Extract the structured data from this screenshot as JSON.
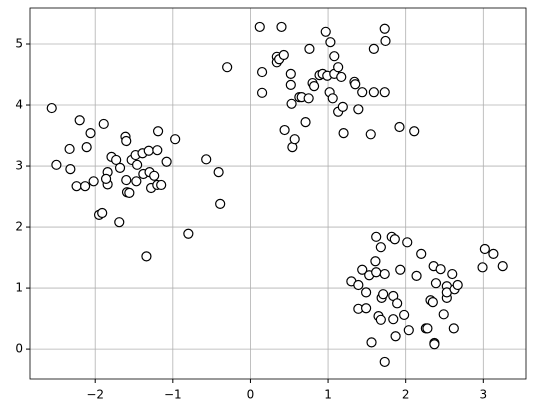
{
  "chart_data": {
    "type": "scatter",
    "x": [
      -2.56,
      -2.5,
      -2.2,
      -2.33,
      -2.32,
      -2.24,
      -2.13,
      -2.11,
      -2.06,
      -2.02,
      -1.89,
      -1.84,
      -1.84,
      -1.86,
      -1.95,
      -1.91,
      -1.79,
      -1.73,
      -1.69,
      -1.68,
      -1.61,
      -1.6,
      -1.6,
      -1.59,
      -1.56,
      -1.53,
      -1.48,
      -1.47,
      -1.46,
      -1.39,
      -1.38,
      -1.31,
      -1.3,
      -1.28,
      -1.24,
      -1.2,
      -1.2,
      -1.19,
      -1.15,
      -1.08,
      -0.97,
      -1.34,
      -0.8,
      -0.57,
      -0.41,
      -0.39,
      -0.3,
      0.12,
      0.4,
      0.15,
      0.15,
      0.34,
      0.34,
      0.37,
      0.43,
      0.44,
      0.52,
      0.52,
      0.53,
      0.54,
      0.57,
      0.63,
      0.66,
      0.71,
      0.75,
      0.76,
      0.8,
      0.82,
      0.89,
      0.93,
      0.97,
      0.99,
      1.02,
      1.03,
      1.06,
      1.08,
      1.08,
      1.13,
      1.13,
      1.17,
      1.19,
      1.2,
      1.34,
      1.35,
      1.39,
      1.44,
      1.55,
      1.59,
      1.59,
      1.73,
      1.74,
      1.73,
      1.92,
      2.11,
      1.3,
      1.39,
      1.39,
      1.44,
      1.49,
      1.49,
      1.53,
      1.56,
      1.61,
      1.62,
      1.62,
      1.65,
      1.68,
      1.68,
      1.69,
      1.71,
      1.73,
      1.73,
      1.82,
      1.84,
      1.86,
      1.84,
      1.89,
      1.87,
      1.93,
      1.98,
      2.02,
      2.04,
      2.14,
      2.2,
      2.26,
      2.28,
      2.32,
      2.35,
      2.36,
      2.37,
      2.37,
      2.39,
      2.45,
      2.49,
      2.53,
      2.53,
      2.53,
      2.6,
      2.63,
      2.62,
      2.67,
      2.99,
      3.02,
      3.13,
      3.25
    ],
    "values": [
      3.95,
      3.02,
      3.75,
      3.28,
      2.95,
      2.67,
      2.67,
      3.31,
      3.54,
      2.75,
      3.69,
      2.7,
      2.9,
      2.79,
      2.2,
      2.23,
      3.15,
      3.1,
      2.08,
      2.97,
      3.48,
      3.41,
      2.77,
      2.57,
      2.56,
      3.1,
      3.18,
      2.75,
      3.02,
      3.21,
      2.87,
      3.25,
      2.9,
      2.64,
      2.84,
      2.69,
      3.26,
      3.57,
      2.69,
      3.07,
      3.44,
      1.52,
      1.89,
      3.11,
      2.9,
      2.38,
      4.62,
      5.28,
      5.28,
      4.54,
      4.2,
      4.79,
      4.7,
      4.75,
      4.82,
      3.59,
      4.51,
      4.33,
      4.02,
      3.31,
      3.44,
      4.13,
      4.13,
      3.72,
      4.11,
      4.92,
      4.36,
      4.31,
      4.49,
      4.51,
      5.2,
      4.48,
      4.21,
      5.03,
      4.11,
      4.8,
      4.51,
      4.62,
      3.89,
      4.46,
      3.97,
      3.54,
      4.38,
      4.34,
      3.93,
      4.21,
      3.52,
      4.92,
      4.21,
      5.25,
      5.05,
      4.21,
      3.64,
      3.57,
      1.11,
      1.05,
      0.66,
      1.3,
      0.93,
      0.67,
      1.21,
      0.11,
      1.44,
      1.84,
      1.26,
      0.54,
      1.67,
      0.48,
      0.84,
      0.9,
      1.23,
      -0.21,
      1.84,
      0.87,
      1.8,
      0.49,
      0.75,
      0.21,
      1.3,
      0.56,
      1.75,
      0.31,
      1.2,
      1.56,
      0.34,
      0.34,
      0.8,
      0.77,
      1.36,
      0.1,
      0.08,
      1.08,
      1.31,
      0.57,
      1.03,
      0.84,
      0.93,
      1.23,
      0.98,
      0.34,
      1.05,
      1.34,
      1.64,
      1.56,
      1.36
    ],
    "color": "#ffffff",
    "edgecolor": "#000000",
    "grid": true,
    "xlim": [
      -2.84,
      3.55
    ],
    "ylim": [
      -0.49,
      5.59
    ],
    "xticks": [
      {
        "value": -2,
        "label": "−2"
      },
      {
        "value": -1,
        "label": "−1"
      },
      0,
      1,
      2,
      3
    ],
    "yticks": [
      0,
      1,
      2,
      3,
      4,
      5
    ]
  }
}
